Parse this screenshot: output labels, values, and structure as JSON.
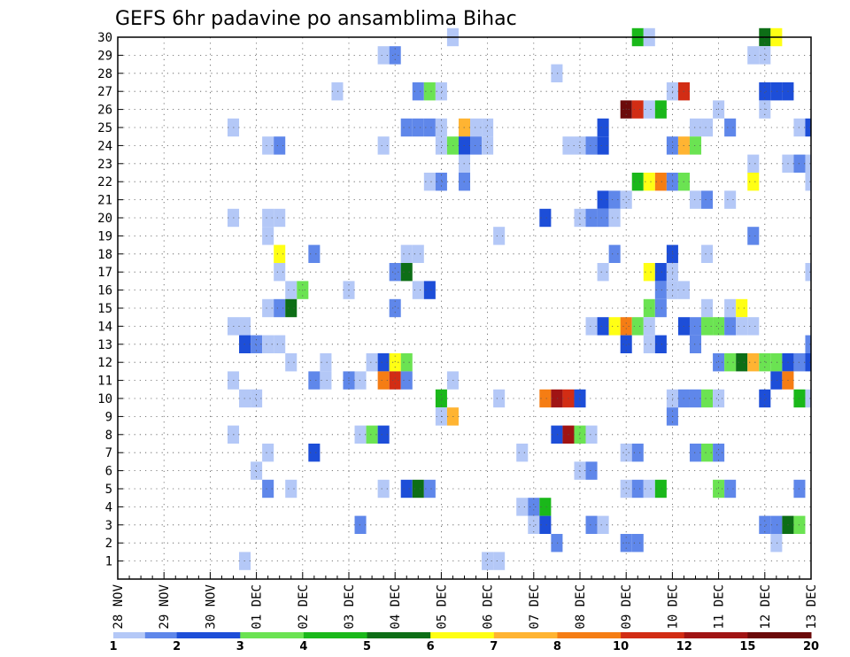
{
  "chart_data": {
    "type": "heatmap",
    "title": "GEFS 6hr padavine po ansamblima Bihac",
    "x_tick_labels": [
      "28 NOV",
      "29 NOV",
      "30 NOV",
      "01 DEC",
      "02 DEC",
      "03 DEC",
      "04 DEC",
      "05 DEC",
      "06 DEC",
      "07 DEC",
      "08 DEC",
      "09 DEC",
      "10 DEC",
      "11 DEC",
      "12 DEC",
      "13 DEC"
    ],
    "x_steps_per_day": 4,
    "x_step_count": 61,
    "y_tick_labels": [
      "1",
      "2",
      "3",
      "4",
      "5",
      "6",
      "7",
      "8",
      "9",
      "10",
      "11",
      "12",
      "13",
      "14",
      "15",
      "16",
      "17",
      "18",
      "19",
      "20",
      "21",
      "22",
      "23",
      "24",
      "25",
      "26",
      "27",
      "28",
      "29",
      "30"
    ],
    "ylim": [
      0,
      30
    ],
    "grid": true,
    "colorbar": {
      "labels": [
        "1",
        "2",
        "3",
        "4",
        "5",
        "6",
        "7",
        "8",
        "10",
        "12",
        "15",
        "20"
      ],
      "colors": [
        "#b4c8f7",
        "#5f87ea",
        "#1d4ed8",
        "#6be352",
        "#1ab81a",
        "#0d6e16",
        "#ffff14",
        "#ffb432",
        "#f57d14",
        "#d22d14",
        "#a01414",
        "#6b0a0a"
      ]
    },
    "cells": [
      [
        29,
        1,
        30
      ],
      [
        45,
        5,
        30
      ],
      [
        46,
        1,
        30
      ],
      [
        56,
        6,
        30
      ],
      [
        57,
        7,
        30
      ],
      [
        23,
        1,
        29
      ],
      [
        24,
        2,
        29
      ],
      [
        55,
        1,
        29
      ],
      [
        56,
        1,
        29
      ],
      [
        38,
        1,
        28
      ],
      [
        19,
        1,
        27
      ],
      [
        26,
        2,
        27
      ],
      [
        27,
        4,
        27
      ],
      [
        28,
        1,
        27
      ],
      [
        48,
        1,
        27
      ],
      [
        49,
        10,
        27
      ],
      [
        56,
        3,
        27
      ],
      [
        57,
        3,
        27
      ],
      [
        58,
        3,
        27
      ],
      [
        44,
        12,
        26
      ],
      [
        45,
        10,
        26
      ],
      [
        46,
        1,
        26
      ],
      [
        47,
        5,
        26
      ],
      [
        52,
        1,
        26
      ],
      [
        56,
        1,
        26
      ],
      [
        10,
        1,
        25
      ],
      [
        25,
        2,
        25
      ],
      [
        26,
        2,
        25
      ],
      [
        27,
        2,
        25
      ],
      [
        28,
        1,
        25
      ],
      [
        30,
        8,
        25
      ],
      [
        31,
        1,
        25
      ],
      [
        32,
        1,
        25
      ],
      [
        42,
        3,
        25
      ],
      [
        50,
        1,
        25
      ],
      [
        51,
        1,
        25
      ],
      [
        53,
        2,
        25
      ],
      [
        59,
        1,
        25
      ],
      [
        60,
        3,
        25
      ],
      [
        13,
        1,
        24
      ],
      [
        14,
        2,
        24
      ],
      [
        23,
        1,
        24
      ],
      [
        28,
        1,
        24
      ],
      [
        29,
        4,
        24
      ],
      [
        30,
        3,
        24
      ],
      [
        31,
        2,
        24
      ],
      [
        32,
        1,
        24
      ],
      [
        39,
        1,
        24
      ],
      [
        40,
        1,
        24
      ],
      [
        41,
        2,
        24
      ],
      [
        42,
        3,
        24
      ],
      [
        48,
        2,
        24
      ],
      [
        49,
        8,
        24
      ],
      [
        50,
        4,
        24
      ],
      [
        30,
        1,
        23
      ],
      [
        55,
        1,
        23
      ],
      [
        58,
        1,
        23
      ],
      [
        59,
        2,
        23
      ],
      [
        60,
        1,
        23
      ],
      [
        27,
        1,
        22
      ],
      [
        28,
        2,
        22
      ],
      [
        30,
        2,
        22
      ],
      [
        45,
        5,
        22
      ],
      [
        46,
        7,
        22
      ],
      [
        47,
        9,
        22
      ],
      [
        48,
        2,
        22
      ],
      [
        49,
        4,
        22
      ],
      [
        55,
        7,
        22
      ],
      [
        60,
        1,
        22
      ],
      [
        42,
        3,
        21
      ],
      [
        43,
        2,
        21
      ],
      [
        44,
        1,
        21
      ],
      [
        50,
        1,
        21
      ],
      [
        51,
        2,
        21
      ],
      [
        53,
        1,
        21
      ],
      [
        10,
        1,
        20
      ],
      [
        13,
        1,
        20
      ],
      [
        14,
        1,
        20
      ],
      [
        37,
        3,
        20
      ],
      [
        40,
        1,
        20
      ],
      [
        41,
        2,
        20
      ],
      [
        42,
        2,
        20
      ],
      [
        43,
        1,
        20
      ],
      [
        13,
        1,
        19
      ],
      [
        33,
        1,
        19
      ],
      [
        55,
        2,
        19
      ],
      [
        14,
        7,
        18
      ],
      [
        17,
        2,
        18
      ],
      [
        25,
        1,
        18
      ],
      [
        26,
        1,
        18
      ],
      [
        43,
        2,
        18
      ],
      [
        48,
        3,
        18
      ],
      [
        51,
        1,
        18
      ],
      [
        14,
        1,
        17
      ],
      [
        24,
        2,
        17
      ],
      [
        25,
        6,
        17
      ],
      [
        42,
        1,
        17
      ],
      [
        46,
        7,
        17
      ],
      [
        47,
        3,
        17
      ],
      [
        48,
        1,
        17
      ],
      [
        60,
        1,
        17
      ],
      [
        15,
        1,
        16
      ],
      [
        16,
        4,
        16
      ],
      [
        20,
        1,
        16
      ],
      [
        26,
        1,
        16
      ],
      [
        27,
        3,
        16
      ],
      [
        47,
        2,
        16
      ],
      [
        48,
        1,
        16
      ],
      [
        49,
        1,
        16
      ],
      [
        13,
        1,
        15
      ],
      [
        14,
        2,
        15
      ],
      [
        15,
        6,
        15
      ],
      [
        24,
        2,
        15
      ],
      [
        46,
        4,
        15
      ],
      [
        47,
        2,
        15
      ],
      [
        51,
        1,
        15
      ],
      [
        53,
        1,
        15
      ],
      [
        54,
        7,
        15
      ],
      [
        10,
        1,
        14
      ],
      [
        11,
        1,
        14
      ],
      [
        41,
        1,
        14
      ],
      [
        42,
        3,
        14
      ],
      [
        43,
        7,
        14
      ],
      [
        44,
        9,
        14
      ],
      [
        45,
        4,
        14
      ],
      [
        46,
        1,
        14
      ],
      [
        49,
        3,
        14
      ],
      [
        50,
        2,
        14
      ],
      [
        51,
        4,
        14
      ],
      [
        52,
        4,
        14
      ],
      [
        53,
        2,
        14
      ],
      [
        54,
        1,
        14
      ],
      [
        55,
        1,
        14
      ],
      [
        11,
        3,
        13
      ],
      [
        12,
        2,
        13
      ],
      [
        13,
        1,
        13
      ],
      [
        14,
        1,
        13
      ],
      [
        44,
        3,
        13
      ],
      [
        46,
        1,
        13
      ],
      [
        47,
        3,
        13
      ],
      [
        50,
        2,
        13
      ],
      [
        60,
        2,
        13
      ],
      [
        15,
        1,
        12
      ],
      [
        18,
        1,
        12
      ],
      [
        22,
        1,
        12
      ],
      [
        23,
        3,
        12
      ],
      [
        24,
        7,
        12
      ],
      [
        25,
        4,
        12
      ],
      [
        52,
        2,
        12
      ],
      [
        53,
        4,
        12
      ],
      [
        54,
        6,
        12
      ],
      [
        55,
        8,
        12
      ],
      [
        56,
        4,
        12
      ],
      [
        57,
        4,
        12
      ],
      [
        58,
        3,
        12
      ],
      [
        59,
        2,
        12
      ],
      [
        60,
        3,
        12
      ],
      [
        10,
        1,
        11
      ],
      [
        17,
        2,
        11
      ],
      [
        18,
        1,
        11
      ],
      [
        20,
        2,
        11
      ],
      [
        21,
        1,
        11
      ],
      [
        23,
        9,
        11
      ],
      [
        24,
        10,
        11
      ],
      [
        25,
        2,
        11
      ],
      [
        29,
        1,
        11
      ],
      [
        57,
        3,
        11
      ],
      [
        58,
        9,
        11
      ],
      [
        11,
        1,
        10
      ],
      [
        12,
        1,
        10
      ],
      [
        28,
        5,
        10
      ],
      [
        33,
        1,
        10
      ],
      [
        37,
        9,
        10
      ],
      [
        38,
        11,
        10
      ],
      [
        39,
        10,
        10
      ],
      [
        40,
        3,
        10
      ],
      [
        48,
        1,
        10
      ],
      [
        49,
        2,
        10
      ],
      [
        50,
        2,
        10
      ],
      [
        51,
        4,
        10
      ],
      [
        52,
        1,
        10
      ],
      [
        56,
        3,
        10
      ],
      [
        59,
        5,
        10
      ],
      [
        60,
        1,
        10
      ],
      [
        28,
        1,
        9
      ],
      [
        29,
        8,
        9
      ],
      [
        48,
        2,
        9
      ],
      [
        10,
        1,
        8
      ],
      [
        21,
        1,
        8
      ],
      [
        22,
        4,
        8
      ],
      [
        23,
        3,
        8
      ],
      [
        38,
        3,
        8
      ],
      [
        39,
        11,
        8
      ],
      [
        40,
        4,
        8
      ],
      [
        41,
        1,
        8
      ],
      [
        13,
        1,
        7
      ],
      [
        17,
        3,
        7
      ],
      [
        35,
        1,
        7
      ],
      [
        44,
        1,
        7
      ],
      [
        45,
        2,
        7
      ],
      [
        50,
        2,
        7
      ],
      [
        51,
        4,
        7
      ],
      [
        52,
        2,
        7
      ],
      [
        12,
        1,
        6
      ],
      [
        40,
        1,
        6
      ],
      [
        41,
        2,
        6
      ],
      [
        13,
        2,
        5
      ],
      [
        15,
        1,
        5
      ],
      [
        23,
        1,
        5
      ],
      [
        25,
        3,
        5
      ],
      [
        26,
        6,
        5
      ],
      [
        27,
        2,
        5
      ],
      [
        44,
        1,
        5
      ],
      [
        45,
        2,
        5
      ],
      [
        46,
        1,
        5
      ],
      [
        47,
        5,
        5
      ],
      [
        52,
        4,
        5
      ],
      [
        53,
        2,
        5
      ],
      [
        59,
        2,
        5
      ],
      [
        35,
        1,
        4
      ],
      [
        36,
        2,
        4
      ],
      [
        37,
        5,
        4
      ],
      [
        21,
        2,
        3
      ],
      [
        36,
        1,
        3
      ],
      [
        37,
        3,
        3
      ],
      [
        41,
        2,
        3
      ],
      [
        42,
        1,
        3
      ],
      [
        56,
        2,
        3
      ],
      [
        57,
        2,
        3
      ],
      [
        58,
        6,
        3
      ],
      [
        59,
        4,
        3
      ],
      [
        38,
        2,
        2
      ],
      [
        44,
        2,
        2
      ],
      [
        45,
        2,
        2
      ],
      [
        57,
        1,
        2
      ],
      [
        11,
        1,
        1
      ],
      [
        32,
        1,
        1
      ],
      [
        33,
        1,
        1
      ]
    ]
  }
}
